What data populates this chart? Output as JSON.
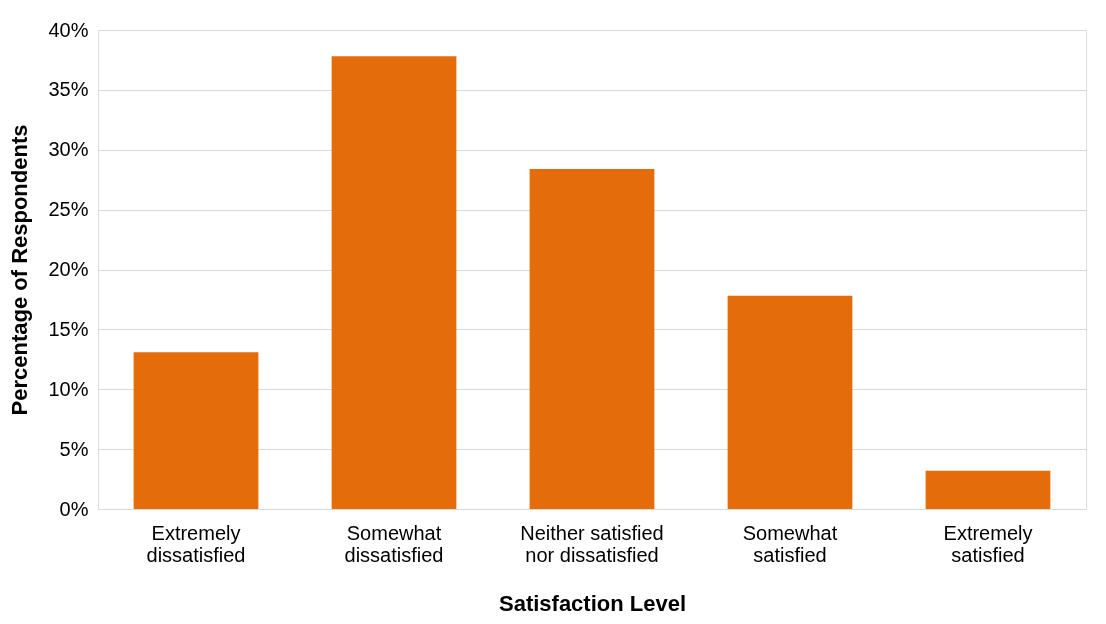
{
  "chart_data": {
    "type": "bar",
    "xlabel": "Satisfaction Level",
    "ylabel": "Percentage of Respondents",
    "categories": [
      "Extremely\ndissatisfied",
      "Somewhat\ndissatisfied",
      "Neither satisfied\nnor dissatisfied",
      "Somewhat\nsatisfied",
      "Extremely\nsatisfied"
    ],
    "values": [
      13.1,
      37.8,
      28.4,
      17.8,
      3.2
    ],
    "color": "#e46c0a",
    "ylim": [
      0,
      40
    ],
    "yticks": [
      {
        "value": 0,
        "label": "0%"
      },
      {
        "value": 5,
        "label": "5%"
      },
      {
        "value": 10,
        "label": "10%"
      },
      {
        "value": 15,
        "label": "15%"
      },
      {
        "value": 20,
        "label": "20%"
      },
      {
        "value": 25,
        "label": "25%"
      },
      {
        "value": 30,
        "label": "30%"
      },
      {
        "value": 35,
        "label": "35%"
      },
      {
        "value": 40,
        "label": "40%"
      }
    ],
    "grid": "y"
  }
}
